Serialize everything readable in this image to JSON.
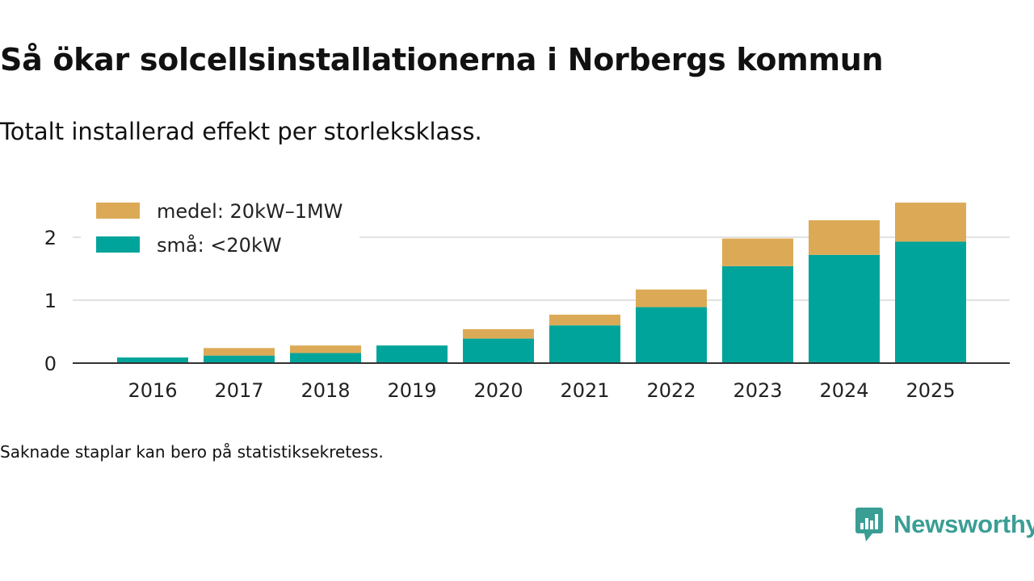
{
  "title": "Så ökar solcellsinstallationerna i Norbergs kommun",
  "subtitle": "Totalt installerad effekt per storleksklass.",
  "footnote": "Saknade staplar kan bero på statistiksekretess.",
  "brand": {
    "name": "Newsworthy",
    "color": "#3a9e95",
    "icon": "newsworthy-logo-icon"
  },
  "colors": {
    "small": "#00a49a",
    "medium": "#dcaa57",
    "grid": "#d9d9d9",
    "axis": "#333333"
  },
  "chart_data": {
    "type": "bar",
    "stacked": true,
    "categories": [
      "2016",
      "2017",
      "2018",
      "2019",
      "2020",
      "2021",
      "2022",
      "2023",
      "2024",
      "2025"
    ],
    "series": [
      {
        "name": "små: <20kW",
        "values": [
          0.09,
          0.12,
          0.16,
          0.28,
          0.39,
          0.6,
          0.89,
          1.54,
          1.72,
          1.93
        ]
      },
      {
        "name": "medel: 20kW–1MW",
        "values": [
          0,
          0.12,
          0.12,
          0,
          0.15,
          0.17,
          0.28,
          0.44,
          0.55,
          0.62
        ]
      }
    ],
    "legend": [
      {
        "label": "medel: 20kW–1MW",
        "series": 1
      },
      {
        "label": "små: <20kW",
        "series": 0
      }
    ],
    "yticks": [
      "0",
      "1",
      "2"
    ],
    "ylim": [
      0,
      2.6
    ],
    "xlabel": "",
    "ylabel": "",
    "grid": true,
    "legend_position": "top-left"
  }
}
